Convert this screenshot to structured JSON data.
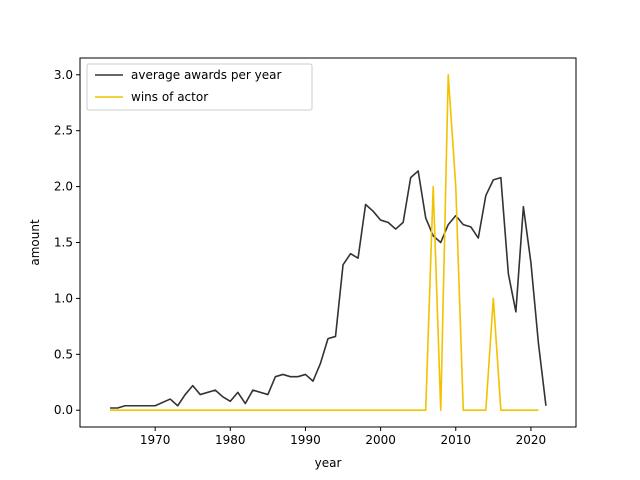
{
  "chart_data": {
    "type": "line",
    "title": "",
    "xlabel": "year",
    "ylabel": "amount",
    "xlim": [
      1960,
      2026
    ],
    "ylim": [
      -0.15,
      3.15
    ],
    "xticks": [
      1970,
      1980,
      1990,
      2000,
      2010,
      2020
    ],
    "yticks": [
      0.0,
      0.5,
      1.0,
      1.5,
      2.0,
      2.5,
      3.0
    ],
    "ytick_labels": [
      "0.0",
      "0.5",
      "1.0",
      "1.5",
      "2.0",
      "2.5",
      "3.0"
    ],
    "grid": false,
    "legend_position": "upper-left",
    "series": [
      {
        "name": "average awards per year",
        "color": "#333333",
        "points": [
          [
            1964,
            0.02
          ],
          [
            1965,
            0.02
          ],
          [
            1966,
            0.04
          ],
          [
            1970,
            0.04
          ],
          [
            1972,
            0.1
          ],
          [
            1973,
            0.04
          ],
          [
            1974,
            0.14
          ],
          [
            1975,
            0.22
          ],
          [
            1976,
            0.14
          ],
          [
            1978,
            0.18
          ],
          [
            1979,
            0.12
          ],
          [
            1980,
            0.08
          ],
          [
            1981,
            0.16
          ],
          [
            1982,
            0.06
          ],
          [
            1983,
            0.18
          ],
          [
            1985,
            0.14
          ],
          [
            1986,
            0.3
          ],
          [
            1987,
            0.32
          ],
          [
            1988,
            0.3
          ],
          [
            1989,
            0.3
          ],
          [
            1990,
            0.32
          ],
          [
            1991,
            0.26
          ],
          [
            1992,
            0.42
          ],
          [
            1993,
            0.64
          ],
          [
            1994,
            0.66
          ],
          [
            1995,
            1.3
          ],
          [
            1996,
            1.4
          ],
          [
            1997,
            1.36
          ],
          [
            1998,
            1.84
          ],
          [
            1999,
            1.78
          ],
          [
            2000,
            1.7
          ],
          [
            2001,
            1.68
          ],
          [
            2002,
            1.62
          ],
          [
            2003,
            1.68
          ],
          [
            2004,
            2.08
          ],
          [
            2005,
            2.14
          ],
          [
            2006,
            1.72
          ],
          [
            2007,
            1.56
          ],
          [
            2008,
            1.5
          ],
          [
            2009,
            1.66
          ],
          [
            2010,
            1.74
          ],
          [
            2011,
            1.66
          ],
          [
            2012,
            1.64
          ],
          [
            2013,
            1.54
          ],
          [
            2014,
            1.92
          ],
          [
            2015,
            2.06
          ],
          [
            2016,
            2.08
          ],
          [
            2017,
            1.22
          ],
          [
            2018,
            0.88
          ],
          [
            2019,
            1.82
          ],
          [
            2020,
            1.32
          ],
          [
            2021,
            0.6
          ],
          [
            2022,
            0.04
          ]
        ]
      },
      {
        "name": "wins of actor",
        "color": "#f2c200",
        "points": [
          [
            1964,
            0
          ],
          [
            2006,
            0
          ],
          [
            2007,
            2
          ],
          [
            2008,
            0
          ],
          [
            2009,
            3
          ],
          [
            2010,
            2
          ],
          [
            2011,
            0
          ],
          [
            2014,
            0
          ],
          [
            2015,
            1
          ],
          [
            2016,
            0
          ],
          [
            2021,
            0
          ]
        ]
      }
    ]
  }
}
